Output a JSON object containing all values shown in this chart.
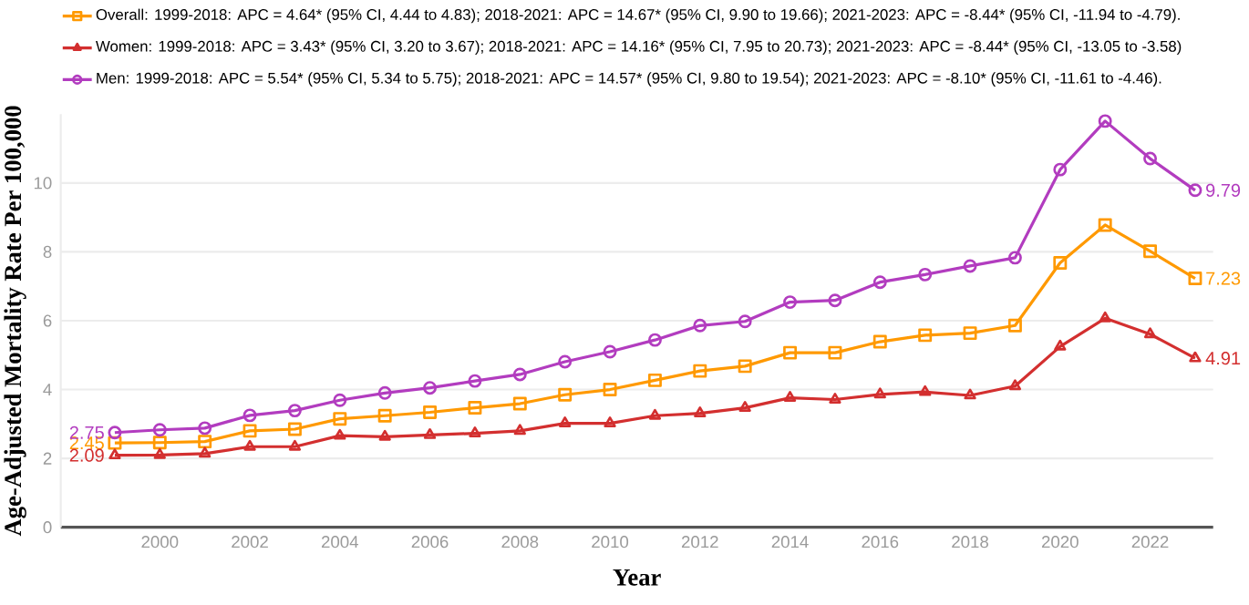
{
  "chart_data": {
    "type": "line",
    "xlabel": "Year",
    "ylabel": "Age-Adjusted Mortality Rate Per 100,000",
    "x": [
      1999,
      2000,
      2001,
      2002,
      2003,
      2004,
      2005,
      2006,
      2007,
      2008,
      2009,
      2010,
      2011,
      2012,
      2013,
      2014,
      2015,
      2016,
      2017,
      2018,
      2019,
      2020,
      2021,
      2022,
      2023
    ],
    "xlim": [
      1997.8,
      2023.4
    ],
    "xticks": [
      2000,
      2002,
      2004,
      2006,
      2008,
      2010,
      2012,
      2014,
      2016,
      2018,
      2020,
      2022
    ],
    "ylim": [
      0,
      12
    ],
    "yticks": [
      0,
      2,
      4,
      6,
      8,
      10
    ],
    "grid": "y",
    "legend": "top",
    "line_style": "solid",
    "series": [
      {
        "name": "Overall: 1999-2018: APC = 4.64* (95% CI, 4.44 to 4.83); 2018-2021: APC = 14.67* (95% CI, 9.90 to 19.66); 2021-2023: APC = -8.44* (95% CI, -11.94 to -4.79).",
        "color": "#ff9900",
        "marker": "square",
        "values": [
          2.45,
          2.46,
          2.49,
          2.8,
          2.85,
          3.15,
          3.24,
          3.34,
          3.47,
          3.59,
          3.85,
          4.0,
          4.27,
          4.54,
          4.68,
          5.07,
          5.07,
          5.39,
          5.58,
          5.64,
          5.86,
          7.68,
          8.78,
          8.02,
          7.23
        ],
        "value_labels": [
          "2.45",
          null,
          null,
          null,
          null,
          null,
          null,
          null,
          null,
          null,
          null,
          null,
          null,
          null,
          null,
          null,
          null,
          null,
          null,
          null,
          null,
          null,
          null,
          null,
          "7.23"
        ]
      },
      {
        "name": "Women: 1999-2018: APC = 3.43* (95% CI, 3.20 to 3.67); 2018-2021: APC = 14.16* (95% CI, 7.95 to 20.73); 2021-2023: APC = -8.44* (95% CI, -13.05 to -3.58)",
        "color": "#d32f2f",
        "marker": "triangle",
        "values": [
          2.09,
          2.1,
          2.14,
          2.34,
          2.34,
          2.66,
          2.63,
          2.68,
          2.73,
          2.8,
          3.02,
          3.02,
          3.24,
          3.31,
          3.47,
          3.76,
          3.71,
          3.86,
          3.93,
          3.83,
          4.1,
          5.25,
          6.07,
          5.61,
          4.91
        ],
        "value_labels": [
          "2.09",
          null,
          null,
          null,
          null,
          null,
          null,
          null,
          null,
          null,
          null,
          null,
          null,
          null,
          null,
          null,
          null,
          null,
          null,
          null,
          null,
          null,
          null,
          null,
          "4.91"
        ]
      },
      {
        "name": "Men: 1999-2018: APC = 5.54* (95% CI, 5.34 to 5.75); 2018-2021: APC = 14.57* (95% CI, 9.80 to 19.54); 2021-2023: APC = -8.10* (95% CI, -11.61 to -4.46).",
        "color": "#b23cbf",
        "marker": "circle",
        "values": [
          2.75,
          2.83,
          2.88,
          3.25,
          3.39,
          3.69,
          3.9,
          4.05,
          4.25,
          4.44,
          4.81,
          5.1,
          5.44,
          5.86,
          5.98,
          6.54,
          6.59,
          7.12,
          7.34,
          7.59,
          7.83,
          10.39,
          11.8,
          10.71,
          9.79
        ],
        "value_labels": [
          "2.75",
          null,
          null,
          null,
          null,
          null,
          null,
          null,
          null,
          null,
          null,
          null,
          null,
          null,
          null,
          null,
          null,
          null,
          null,
          null,
          null,
          null,
          null,
          null,
          "9.79"
        ]
      }
    ]
  }
}
